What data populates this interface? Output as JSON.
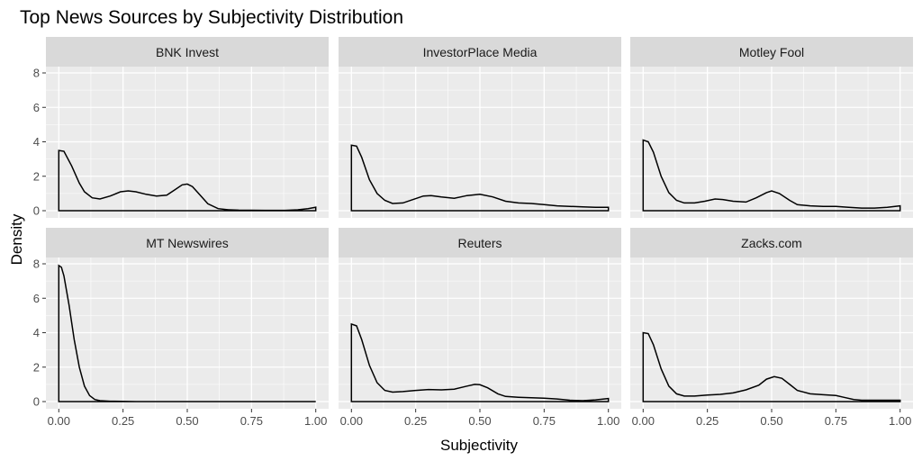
{
  "chart_data": {
    "type": "line",
    "variant": "faceted-density",
    "title": "Top News Sources by Subjectivity Distribution",
    "xlabel": "Subjectivity",
    "ylabel": "Density",
    "xlim": [
      0,
      1
    ],
    "ylim": [
      0,
      8
    ],
    "x_ticks": [
      "0.00",
      "0.25",
      "0.50",
      "0.75",
      "1.00"
    ],
    "y_ticks": [
      "0",
      "2",
      "4",
      "6",
      "8"
    ],
    "grid": true,
    "facets": [
      {
        "name": "BNK Invest",
        "points": [
          [
            0,
            3.5
          ],
          [
            0.02,
            3.45
          ],
          [
            0.05,
            2.6
          ],
          [
            0.08,
            1.6
          ],
          [
            0.1,
            1.1
          ],
          [
            0.13,
            0.75
          ],
          [
            0.16,
            0.68
          ],
          [
            0.2,
            0.85
          ],
          [
            0.24,
            1.1
          ],
          [
            0.27,
            1.15
          ],
          [
            0.3,
            1.1
          ],
          [
            0.34,
            0.95
          ],
          [
            0.38,
            0.85
          ],
          [
            0.42,
            0.9
          ],
          [
            0.45,
            1.2
          ],
          [
            0.48,
            1.5
          ],
          [
            0.5,
            1.55
          ],
          [
            0.52,
            1.4
          ],
          [
            0.55,
            0.9
          ],
          [
            0.58,
            0.4
          ],
          [
            0.62,
            0.12
          ],
          [
            0.66,
            0.05
          ],
          [
            0.7,
            0.03
          ],
          [
            0.8,
            0.02
          ],
          [
            0.88,
            0.02
          ],
          [
            0.93,
            0.05
          ],
          [
            0.97,
            0.12
          ],
          [
            1,
            0.2
          ]
        ]
      },
      {
        "name": "InvestorPlace Media",
        "points": [
          [
            0,
            3.8
          ],
          [
            0.02,
            3.75
          ],
          [
            0.04,
            3.1
          ],
          [
            0.07,
            1.8
          ],
          [
            0.1,
            1.0
          ],
          [
            0.13,
            0.6
          ],
          [
            0.16,
            0.42
          ],
          [
            0.2,
            0.45
          ],
          [
            0.24,
            0.65
          ],
          [
            0.28,
            0.85
          ],
          [
            0.31,
            0.88
          ],
          [
            0.35,
            0.8
          ],
          [
            0.4,
            0.72
          ],
          [
            0.45,
            0.88
          ],
          [
            0.5,
            0.95
          ],
          [
            0.55,
            0.8
          ],
          [
            0.6,
            0.55
          ],
          [
            0.65,
            0.45
          ],
          [
            0.7,
            0.42
          ],
          [
            0.75,
            0.35
          ],
          [
            0.8,
            0.28
          ],
          [
            0.85,
            0.25
          ],
          [
            0.9,
            0.22
          ],
          [
            0.95,
            0.2
          ],
          [
            1,
            0.2
          ]
        ]
      },
      {
        "name": "Motley Fool",
        "points": [
          [
            0,
            4.1
          ],
          [
            0.02,
            4.0
          ],
          [
            0.04,
            3.4
          ],
          [
            0.07,
            2.0
          ],
          [
            0.1,
            1.05
          ],
          [
            0.13,
            0.6
          ],
          [
            0.16,
            0.45
          ],
          [
            0.2,
            0.45
          ],
          [
            0.24,
            0.55
          ],
          [
            0.28,
            0.68
          ],
          [
            0.31,
            0.65
          ],
          [
            0.35,
            0.55
          ],
          [
            0.4,
            0.5
          ],
          [
            0.44,
            0.75
          ],
          [
            0.48,
            1.05
          ],
          [
            0.5,
            1.15
          ],
          [
            0.53,
            1.0
          ],
          [
            0.57,
            0.6
          ],
          [
            0.6,
            0.35
          ],
          [
            0.65,
            0.28
          ],
          [
            0.7,
            0.25
          ],
          [
            0.75,
            0.25
          ],
          [
            0.8,
            0.2
          ],
          [
            0.85,
            0.15
          ],
          [
            0.9,
            0.15
          ],
          [
            0.95,
            0.2
          ],
          [
            1,
            0.28
          ]
        ]
      },
      {
        "name": "MT Newswires",
        "points": [
          [
            0,
            7.9
          ],
          [
            0.01,
            7.8
          ],
          [
            0.02,
            7.3
          ],
          [
            0.04,
            5.6
          ],
          [
            0.06,
            3.6
          ],
          [
            0.08,
            2.0
          ],
          [
            0.1,
            0.9
          ],
          [
            0.12,
            0.35
          ],
          [
            0.14,
            0.12
          ],
          [
            0.16,
            0.05
          ],
          [
            0.2,
            0.02
          ],
          [
            0.3,
            0.0
          ],
          [
            0.5,
            0.0
          ],
          [
            0.75,
            0.0
          ],
          [
            1,
            0.0
          ]
        ]
      },
      {
        "name": "Reuters",
        "points": [
          [
            0,
            4.5
          ],
          [
            0.02,
            4.4
          ],
          [
            0.04,
            3.6
          ],
          [
            0.07,
            2.1
          ],
          [
            0.1,
            1.1
          ],
          [
            0.13,
            0.65
          ],
          [
            0.16,
            0.55
          ],
          [
            0.2,
            0.58
          ],
          [
            0.25,
            0.65
          ],
          [
            0.3,
            0.7
          ],
          [
            0.35,
            0.68
          ],
          [
            0.4,
            0.72
          ],
          [
            0.45,
            0.9
          ],
          [
            0.48,
            1.0
          ],
          [
            0.5,
            0.98
          ],
          [
            0.53,
            0.8
          ],
          [
            0.57,
            0.45
          ],
          [
            0.6,
            0.3
          ],
          [
            0.65,
            0.25
          ],
          [
            0.7,
            0.22
          ],
          [
            0.75,
            0.2
          ],
          [
            0.8,
            0.15
          ],
          [
            0.85,
            0.08
          ],
          [
            0.9,
            0.05
          ],
          [
            0.95,
            0.1
          ],
          [
            1,
            0.18
          ]
        ]
      },
      {
        "name": "Zacks.com",
        "points": [
          [
            0,
            4.0
          ],
          [
            0.02,
            3.95
          ],
          [
            0.04,
            3.3
          ],
          [
            0.07,
            1.9
          ],
          [
            0.1,
            0.9
          ],
          [
            0.13,
            0.45
          ],
          [
            0.16,
            0.32
          ],
          [
            0.2,
            0.32
          ],
          [
            0.25,
            0.38
          ],
          [
            0.3,
            0.42
          ],
          [
            0.35,
            0.5
          ],
          [
            0.4,
            0.68
          ],
          [
            0.45,
            0.95
          ],
          [
            0.48,
            1.3
          ],
          [
            0.51,
            1.45
          ],
          [
            0.54,
            1.35
          ],
          [
            0.57,
            1.0
          ],
          [
            0.6,
            0.65
          ],
          [
            0.65,
            0.45
          ],
          [
            0.7,
            0.4
          ],
          [
            0.75,
            0.35
          ],
          [
            0.78,
            0.25
          ],
          [
            0.82,
            0.12
          ],
          [
            0.85,
            0.08
          ],
          [
            0.9,
            0.08
          ],
          [
            0.95,
            0.08
          ],
          [
            1,
            0.08
          ]
        ]
      }
    ]
  }
}
